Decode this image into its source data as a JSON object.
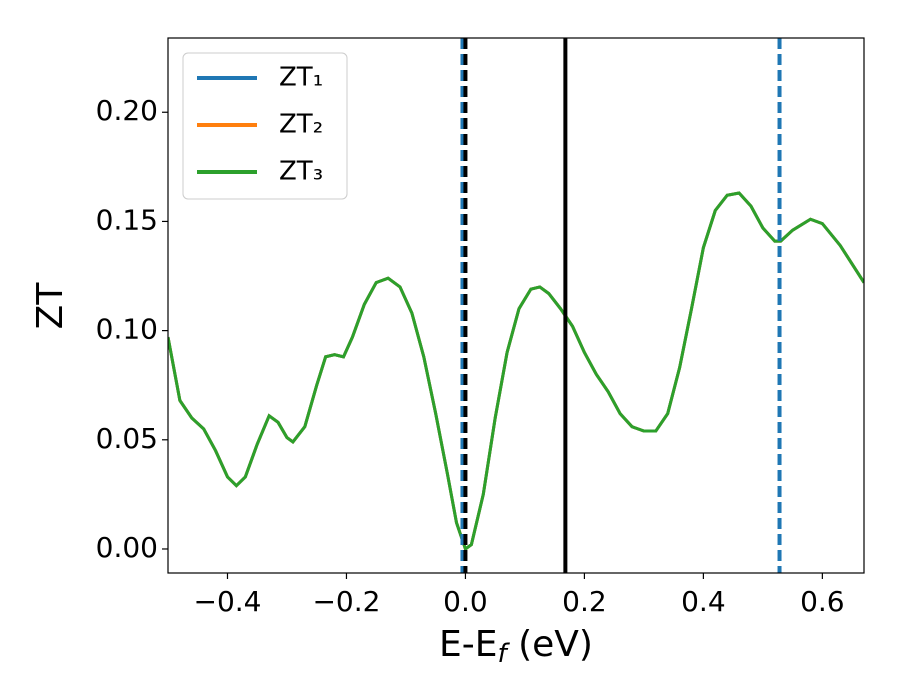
{
  "chart_data": {
    "type": "line",
    "xlabel": [
      "E-E",
      "f",
      " (eV)"
    ],
    "ylabel": "ZT",
    "xlim": [
      -0.5,
      0.67
    ],
    "ylim": [
      -0.011,
      0.234
    ],
    "xticks": [
      {
        "value": -0.4,
        "label": "−0.4"
      },
      {
        "value": -0.2,
        "label": "−0.2"
      },
      {
        "value": 0,
        "label": "0.0"
      },
      {
        "value": 0.2,
        "label": "0.2"
      },
      {
        "value": 0.4,
        "label": "0.4"
      },
      {
        "value": 0.6,
        "label": "0.6"
      }
    ],
    "yticks": [
      {
        "value": 0,
        "label": "0.00"
      },
      0.05,
      {
        "value": 0.1,
        "label": "0.10"
      },
      0.15,
      {
        "value": 0.2,
        "label": "0.20"
      }
    ],
    "legend": "upper left",
    "x": [
      -0.5,
      -0.48,
      -0.46,
      -0.44,
      -0.42,
      -0.4,
      -0.385,
      -0.37,
      -0.35,
      -0.33,
      -0.315,
      -0.3,
      -0.29,
      -0.27,
      -0.25,
      -0.235,
      -0.22,
      -0.205,
      -0.19,
      -0.17,
      -0.15,
      -0.13,
      -0.11,
      -0.09,
      -0.07,
      -0.05,
      -0.03,
      -0.015,
      0,
      0.01,
      0.03,
      0.05,
      0.07,
      0.09,
      0.11,
      0.125,
      0.14,
      0.16,
      0.18,
      0.2,
      0.22,
      0.24,
      0.26,
      0.28,
      0.3,
      0.32,
      0.34,
      0.36,
      0.38,
      0.4,
      0.42,
      0.44,
      0.46,
      0.48,
      0.5,
      0.52,
      0.53,
      0.55,
      0.58,
      0.6,
      0.63,
      0.67
    ],
    "series": [
      {
        "name": "ZT₁",
        "color": "#1f77b4",
        "values": [
          0.097,
          0.068,
          0.06,
          0.055,
          0.045,
          0.033,
          0.029,
          0.033,
          0.048,
          0.061,
          0.058,
          0.051,
          0.049,
          0.056,
          0.075,
          0.088,
          0.089,
          0.088,
          0.097,
          0.112,
          0.122,
          0.124,
          0.12,
          0.108,
          0.088,
          0.062,
          0.034,
          0.012,
          0.0,
          0.002,
          0.025,
          0.06,
          0.09,
          0.11,
          0.119,
          0.12,
          0.117,
          0.11,
          0.102,
          0.09,
          0.08,
          0.072,
          0.062,
          0.056,
          0.054,
          0.054,
          0.062,
          0.083,
          0.11,
          0.138,
          0.155,
          0.162,
          0.163,
          0.157,
          0.147,
          0.141,
          0.141,
          0.146,
          0.151,
          0.149,
          0.139,
          0.122
        ]
      },
      {
        "name": "ZT₂",
        "color": "#ff7f0e",
        "values": [
          0.097,
          0.068,
          0.06,
          0.055,
          0.045,
          0.033,
          0.029,
          0.033,
          0.048,
          0.061,
          0.058,
          0.051,
          0.049,
          0.056,
          0.075,
          0.088,
          0.089,
          0.088,
          0.097,
          0.112,
          0.122,
          0.124,
          0.12,
          0.108,
          0.088,
          0.062,
          0.034,
          0.012,
          0.0,
          0.002,
          0.025,
          0.06,
          0.09,
          0.11,
          0.119,
          0.12,
          0.117,
          0.11,
          0.102,
          0.09,
          0.08,
          0.072,
          0.062,
          0.056,
          0.054,
          0.054,
          0.062,
          0.083,
          0.11,
          0.138,
          0.155,
          0.162,
          0.163,
          0.157,
          0.147,
          0.141,
          0.141,
          0.146,
          0.151,
          0.149,
          0.139,
          0.122
        ]
      },
      {
        "name": "ZT₃",
        "color": "#2ca02c",
        "values": [
          0.097,
          0.068,
          0.06,
          0.055,
          0.045,
          0.033,
          0.029,
          0.033,
          0.048,
          0.061,
          0.058,
          0.051,
          0.049,
          0.056,
          0.075,
          0.088,
          0.089,
          0.088,
          0.097,
          0.112,
          0.122,
          0.124,
          0.12,
          0.108,
          0.088,
          0.062,
          0.034,
          0.012,
          0.0,
          0.002,
          0.025,
          0.06,
          0.09,
          0.11,
          0.119,
          0.12,
          0.117,
          0.11,
          0.102,
          0.09,
          0.08,
          0.072,
          0.062,
          0.056,
          0.054,
          0.054,
          0.062,
          0.083,
          0.11,
          0.138,
          0.155,
          0.162,
          0.163,
          0.157,
          0.147,
          0.141,
          0.141,
          0.146,
          0.151,
          0.149,
          0.139,
          0.122
        ]
      }
    ],
    "vlines": [
      {
        "x": -0.005,
        "color": "#1f77b4",
        "style": "dashed"
      },
      {
        "x": 0.0,
        "color": "#000000",
        "style": "dashed"
      },
      {
        "x": 0.168,
        "color": "#000000",
        "style": "solid"
      },
      {
        "x": 0.528,
        "color": "#1f77b4",
        "style": "dashed"
      }
    ]
  }
}
